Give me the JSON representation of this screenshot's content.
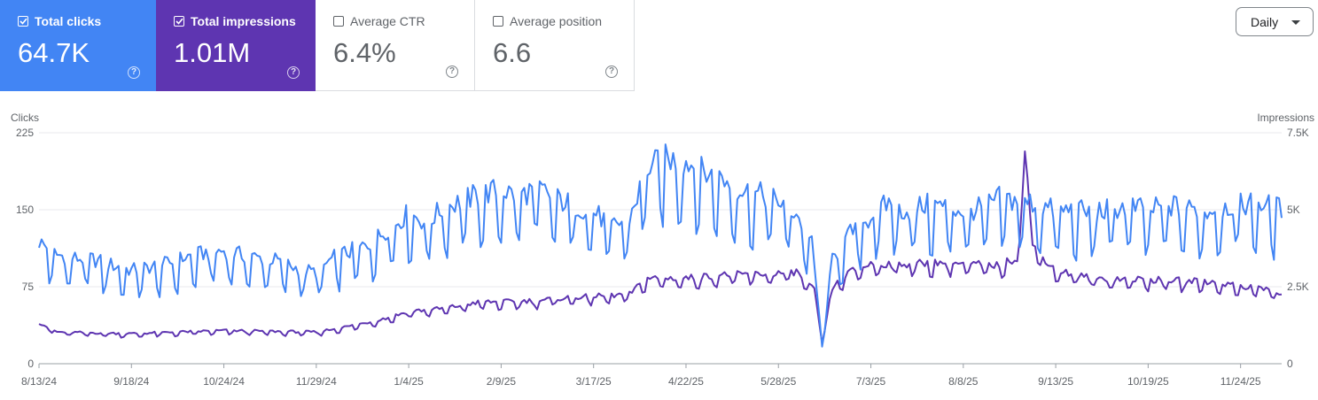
{
  "metrics": {
    "clicks": {
      "label": "Total clicks",
      "value": "64.7K",
      "checked": true,
      "color": "#4285f4"
    },
    "impressions": {
      "label": "Total impressions",
      "value": "1.01M",
      "checked": true,
      "color": "#5e35b1"
    },
    "ctr": {
      "label": "Average CTR",
      "value": "6.4%",
      "checked": false
    },
    "position": {
      "label": "Average position",
      "value": "6.6",
      "checked": false
    }
  },
  "help_glyph": "?",
  "granularity": {
    "selected": "Daily"
  },
  "chart_data": {
    "type": "line",
    "left_axis": {
      "label": "Clicks",
      "ticks": [
        0,
        75,
        150,
        225
      ],
      "tick_labels": [
        "0",
        "75",
        "150",
        "225"
      ],
      "ylim": [
        0,
        225
      ]
    },
    "right_axis": {
      "label": "Impressions",
      "ticks": [
        0,
        2500,
        5000,
        7500
      ],
      "tick_labels": [
        "0",
        "2.5K",
        "5K",
        "7.5K"
      ],
      "ylim": [
        0,
        7500
      ]
    },
    "x_tick_labels": [
      "8/13/24",
      "9/18/24",
      "10/24/24",
      "11/29/24",
      "1/4/25",
      "2/9/25",
      "3/17/25",
      "4/22/25",
      "5/28/25",
      "7/3/25",
      "8/8/25",
      "9/13/25",
      "10/19/25",
      "11/24/25"
    ],
    "x_range": [
      "8/13/24",
      "12/10/25"
    ],
    "grid": true,
    "series": [
      {
        "name": "Total clicks",
        "axis": "left",
        "color": "#4285f4",
        "anchors": [
          [
            "8/13/24",
            112
          ],
          [
            "8/20/24",
            100
          ],
          [
            "8/27/24",
            97
          ],
          [
            "9/3/24",
            96
          ],
          [
            "9/10/24",
            91
          ],
          [
            "9/18/24",
            86
          ],
          [
            "9/25/24",
            89
          ],
          [
            "10/2/24",
            92
          ],
          [
            "10/9/24",
            98
          ],
          [
            "10/17/24",
            102
          ],
          [
            "10/24/24",
            104
          ],
          [
            "10/31/24",
            100
          ],
          [
            "11/7/24",
            97
          ],
          [
            "11/14/24",
            95
          ],
          [
            "11/21/24",
            88
          ],
          [
            "11/29/24",
            84
          ],
          [
            "12/6/24",
            98
          ],
          [
            "12/13/24",
            104
          ],
          [
            "12/20/24",
            110
          ],
          [
            "12/27/24",
            125
          ],
          [
            "1/4/25",
            138
          ],
          [
            "1/11/25",
            130
          ],
          [
            "1/18/25",
            144
          ],
          [
            "1/25/25",
            150
          ],
          [
            "2/1/25",
            156
          ],
          [
            "2/9/25",
            160
          ],
          [
            "2/16/25",
            154
          ],
          [
            "2/23/25",
            162
          ],
          [
            "3/2/25",
            152
          ],
          [
            "3/9/25",
            146
          ],
          [
            "3/17/25",
            140
          ],
          [
            "3/24/25",
            126
          ],
          [
            "3/31/25",
            134
          ],
          [
            "4/7/25",
            180
          ],
          [
            "4/14/25",
            188
          ],
          [
            "4/22/25",
            186
          ],
          [
            "4/29/25",
            176
          ],
          [
            "5/6/25",
            170
          ],
          [
            "5/13/25",
            160
          ],
          [
            "5/20/25",
            156
          ],
          [
            "5/28/25",
            150
          ],
          [
            "6/4/25",
            138
          ],
          [
            "6/10/25",
            110
          ],
          [
            "6/14/25",
            20
          ],
          [
            "6/18/25",
            95
          ],
          [
            "6/25/25",
            120
          ],
          [
            "7/3/25",
            135
          ],
          [
            "7/10/25",
            148
          ],
          [
            "7/17/25",
            140
          ],
          [
            "7/24/25",
            146
          ],
          [
            "8/1/25",
            145
          ],
          [
            "8/8/25",
            140
          ],
          [
            "8/15/25",
            143
          ],
          [
            "8/22/25",
            152
          ],
          [
            "8/29/25",
            150
          ],
          [
            "9/6/25",
            147
          ],
          [
            "9/13/25",
            140
          ],
          [
            "9/20/25",
            142
          ],
          [
            "9/27/25",
            138
          ],
          [
            "10/4/25",
            142
          ],
          [
            "10/12/25",
            145
          ],
          [
            "10/19/25",
            140
          ],
          [
            "10/26/25",
            146
          ],
          [
            "11/2/25",
            143
          ],
          [
            "11/10/25",
            140
          ],
          [
            "11/17/25",
            144
          ],
          [
            "11/24/25",
            147
          ],
          [
            "12/1/25",
            148
          ],
          [
            "12/10/25",
            142
          ]
        ]
      },
      {
        "name": "Total impressions",
        "axis": "right",
        "color": "#5e35b1",
        "anchors": [
          [
            "8/13/24",
            1300
          ],
          [
            "8/20/24",
            1000
          ],
          [
            "9/18/24",
            950
          ],
          [
            "10/24/24",
            1050
          ],
          [
            "11/29/24",
            1000
          ],
          [
            "12/13/24",
            1200
          ],
          [
            "12/27/24",
            1450
          ],
          [
            "1/4/25",
            1650
          ],
          [
            "1/18/25",
            1750
          ],
          [
            "2/1/25",
            1950
          ],
          [
            "2/9/25",
            1950
          ],
          [
            "2/23/25",
            2000
          ],
          [
            "3/9/25",
            2100
          ],
          [
            "3/24/25",
            2150
          ],
          [
            "3/31/25",
            2200
          ],
          [
            "4/7/25",
            2700
          ],
          [
            "4/22/25",
            2700
          ],
          [
            "5/6/25",
            2800
          ],
          [
            "5/28/25",
            2850
          ],
          [
            "6/4/25",
            2900
          ],
          [
            "6/11/25",
            2300
          ],
          [
            "6/14/25",
            700
          ],
          [
            "6/18/25",
            2400
          ],
          [
            "6/25/25",
            2900
          ],
          [
            "7/3/25",
            3150
          ],
          [
            "7/17/25",
            3150
          ],
          [
            "8/1/25",
            3200
          ],
          [
            "8/8/25",
            3150
          ],
          [
            "8/22/25",
            3100
          ],
          [
            "8/29/25",
            3350
          ],
          [
            "9/1/25",
            6900
          ],
          [
            "9/4/25",
            3700
          ],
          [
            "9/13/25",
            2950
          ],
          [
            "9/27/25",
            2700
          ],
          [
            "10/19/25",
            2650
          ],
          [
            "11/10/25",
            2600
          ],
          [
            "11/24/25",
            2450
          ],
          [
            "12/6/25",
            2350
          ],
          [
            "12/10/25",
            2150
          ]
        ]
      }
    ]
  }
}
